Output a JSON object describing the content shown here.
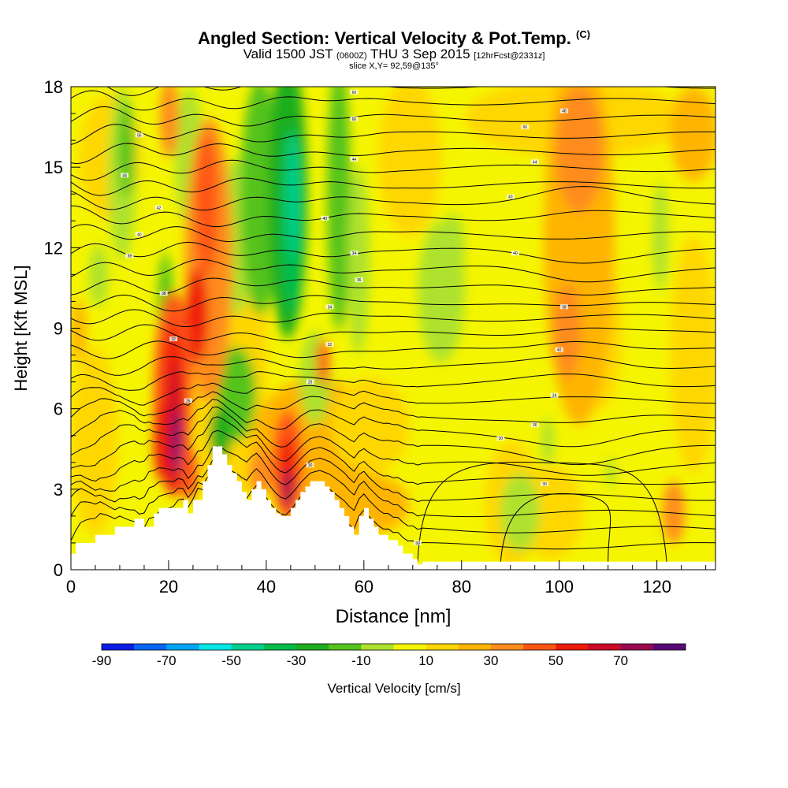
{
  "header": {
    "title": "Angled Section: Vertical Velocity & Pot.Temp.",
    "title_unit": "(C)",
    "valid_prefix": "Valid 1500 JST",
    "valid_zulu": "(0600Z)",
    "valid_date": "THU 3 Sep 2015",
    "forecast": "[12hrFcst@2331z]",
    "slice": "slice X,Y= 92,59@135°"
  },
  "chart_data": {
    "type": "heatmap",
    "xlabel": "Distance [nm]",
    "ylabel": "Height [Kft MSL]",
    "xlim": [
      0,
      132
    ],
    "ylim": [
      0,
      18
    ],
    "x_ticks": [
      0,
      20,
      40,
      60,
      80,
      100,
      120
    ],
    "y_ticks": [
      0,
      3,
      6,
      9,
      12,
      15,
      18
    ],
    "colorbar": {
      "label": "Vertical Velocity [cm/s]",
      "tick_labels": [
        "-90",
        "-70",
        "-50",
        "-30",
        "-10",
        "10",
        "30",
        "50",
        "70"
      ],
      "bins": [
        -90,
        -80,
        -70,
        -60,
        -50,
        -40,
        -30,
        -20,
        -10,
        0,
        10,
        20,
        30,
        40,
        50,
        60,
        70,
        80
      ],
      "colors": [
        "#0a1ee6",
        "#0a64f5",
        "#00a6f5",
        "#00e8e8",
        "#00d08e",
        "#00bd4b",
        "#1ead1e",
        "#55c31e",
        "#aee22d",
        "#f5f500",
        "#ffd700",
        "#ffb400",
        "#ff8c1e",
        "#ff5514",
        "#ee1a0a",
        "#cc0a28",
        "#9b0a50",
        "#5a0a78"
      ],
      "background_color": "#f5f500"
    },
    "features": [
      {
        "type": "updraft",
        "x": 21,
        "y_bottom": 2.5,
        "y_top": 10.5,
        "peak_cm_s": 75
      },
      {
        "type": "updraft",
        "x": 26,
        "y_bottom": 8,
        "y_top": 16,
        "peak_cm_s": 45
      },
      {
        "type": "updraft",
        "x": 44,
        "y_bottom": 2.5,
        "y_top": 5,
        "peak_cm_s": 55
      },
      {
        "type": "downdraft",
        "x": 45,
        "y_bottom": 5,
        "y_top": 18,
        "peak_cm_s": -50
      },
      {
        "type": "downdraft",
        "x": 55,
        "y_bottom": 8,
        "y_top": 18,
        "peak_cm_s": -30
      },
      {
        "type": "downdraft",
        "x": 12,
        "y_bottom": 10,
        "y_top": 18,
        "peak_cm_s": -30
      },
      {
        "type": "downdraft",
        "x": 77,
        "y_bottom": 8,
        "y_top": 13,
        "peak_cm_s": -15
      },
      {
        "type": "downdraft",
        "x": 92,
        "y_bottom": 1,
        "y_top": 3,
        "peak_cm_s": -15
      },
      {
        "type": "updraft",
        "x": 104,
        "y_bottom": 1,
        "y_top": 18,
        "peak_cm_s": 25
      },
      {
        "type": "updraft",
        "x": 124,
        "y_bottom": 1.5,
        "y_top": 3.5,
        "peak_cm_s": 35
      }
    ],
    "terrain_kft": {
      "x": [
        0,
        1,
        5,
        9,
        13,
        15,
        17,
        18,
        21,
        23,
        24,
        25,
        27,
        28,
        29,
        30,
        31,
        32,
        33,
        34,
        35,
        36,
        37,
        38,
        39,
        40,
        41,
        42,
        43,
        44,
        45,
        46,
        47,
        48,
        49,
        50,
        51,
        52,
        53,
        54,
        55,
        56,
        57,
        58,
        59,
        60,
        61,
        62,
        63,
        65,
        67,
        68,
        70,
        71,
        72,
        132
      ],
      "y": [
        0.6,
        1.0,
        1.3,
        1.6,
        1.9,
        1.6,
        2.1,
        2.3,
        2.3,
        2.6,
        2.1,
        2.6,
        3.3,
        3.9,
        4.6,
        4.6,
        4.3,
        3.9,
        3.6,
        3.3,
        2.9,
        2.6,
        3.0,
        3.3,
        3.0,
        2.6,
        2.3,
        2.1,
        2.0,
        2.0,
        2.3,
        2.6,
        2.9,
        3.1,
        3.3,
        3.3,
        3.3,
        3.1,
        2.9,
        2.6,
        2.3,
        2.0,
        1.6,
        1.3,
        2.0,
        2.3,
        1.9,
        1.6,
        1.3,
        1.1,
        0.9,
        0.6,
        0.4,
        0.2,
        0.3,
        0.3
      ]
    },
    "isentropes": {
      "color": "#000000",
      "labels": [
        {
          "x": 58,
          "y": 17.8,
          "text": "66"
        },
        {
          "x": 101,
          "y": 17.1,
          "text": "48"
        },
        {
          "x": 58,
          "y": 16.8,
          "text": "66"
        },
        {
          "x": 14,
          "y": 16.2,
          "text": "56"
        },
        {
          "x": 93,
          "y": 16.5,
          "text": "66"
        },
        {
          "x": 58,
          "y": 15.3,
          "text": "44"
        },
        {
          "x": 95,
          "y": 15.2,
          "text": "44"
        },
        {
          "x": 11,
          "y": 14.7,
          "text": "44"
        },
        {
          "x": 18,
          "y": 13.5,
          "text": "42"
        },
        {
          "x": 90,
          "y": 13.9,
          "text": "40"
        },
        {
          "x": 52,
          "y": 13.1,
          "text": "40"
        },
        {
          "x": 14,
          "y": 12.5,
          "text": "40"
        },
        {
          "x": 58,
          "y": 11.8,
          "text": "34"
        },
        {
          "x": 91,
          "y": 11.8,
          "text": "40"
        },
        {
          "x": 12,
          "y": 11.7,
          "text": "38"
        },
        {
          "x": 19,
          "y": 10.3,
          "text": "38"
        },
        {
          "x": 59,
          "y": 10.8,
          "text": "36"
        },
        {
          "x": 53,
          "y": 9.8,
          "text": "34"
        },
        {
          "x": 101,
          "y": 9.8,
          "text": "38"
        },
        {
          "x": 21,
          "y": 8.6,
          "text": "32"
        },
        {
          "x": 53,
          "y": 8.4,
          "text": "32"
        },
        {
          "x": 100,
          "y": 8.2,
          "text": "40"
        },
        {
          "x": 49,
          "y": 7.0,
          "text": "26"
        },
        {
          "x": 99,
          "y": 6.5,
          "text": "34"
        },
        {
          "x": 24,
          "y": 6.3,
          "text": "26"
        },
        {
          "x": 95,
          "y": 5.4,
          "text": "36"
        },
        {
          "x": 88,
          "y": 4.9,
          "text": "30"
        },
        {
          "x": 97,
          "y": 3.2,
          "text": "30"
        },
        {
          "x": 49,
          "y": 3.9,
          "text": "30"
        },
        {
          "x": 71,
          "y": 1.0,
          "text": "30"
        }
      ]
    }
  }
}
